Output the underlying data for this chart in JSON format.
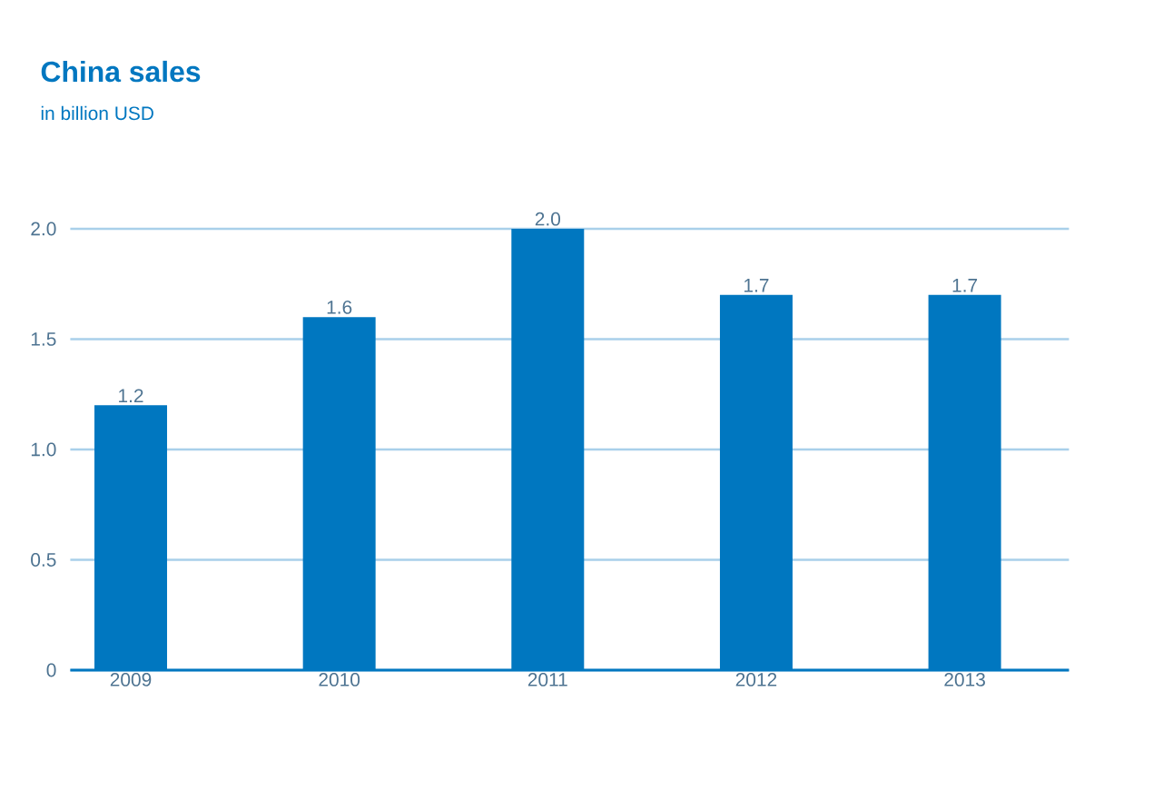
{
  "chart_data": {
    "type": "bar",
    "title": "China sales",
    "subtitle": "in billion USD",
    "categories": [
      "2009",
      "2010",
      "2011",
      "2012",
      "2013"
    ],
    "values": [
      1.2,
      1.6,
      2.0,
      1.7,
      1.7
    ],
    "value_labels": [
      "1.2",
      "1.6",
      "2.0",
      "1.7",
      "1.7"
    ],
    "color": "#0077c0",
    "ylim": [
      0,
      2.0
    ],
    "yticks": [
      0,
      0.5,
      {
        "value": 1,
        "label": "1.0"
      },
      1.5,
      {
        "value": 2,
        "label": "2.0"
      }
    ],
    "grid": "y"
  }
}
